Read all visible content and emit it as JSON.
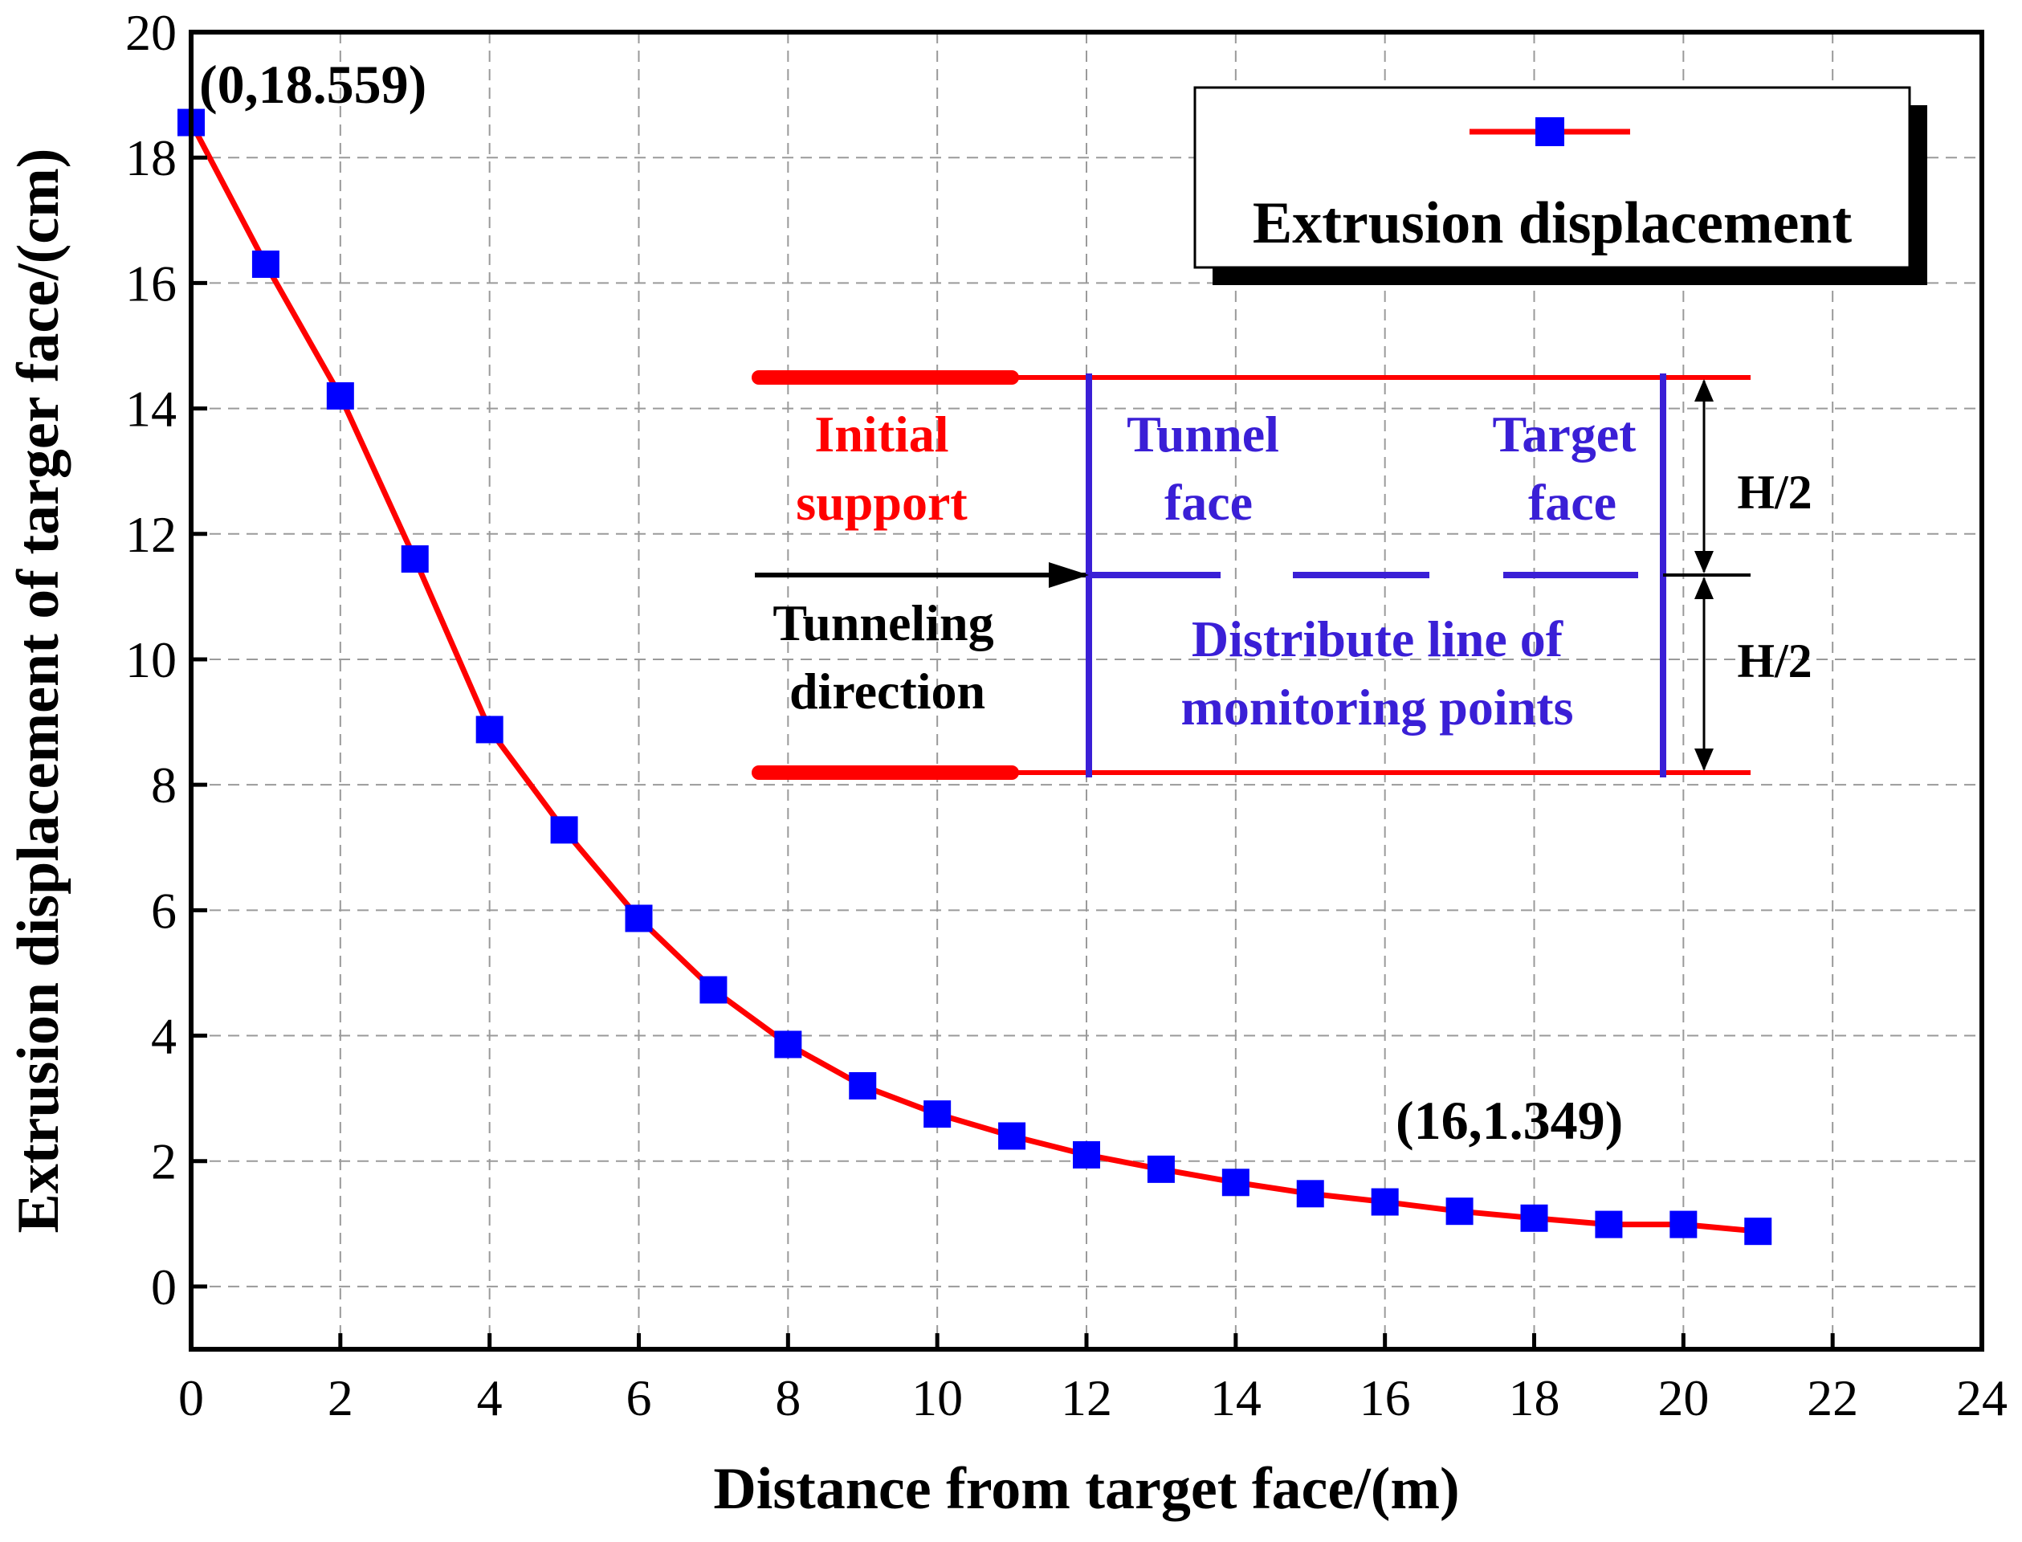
{
  "chart_data": {
    "type": "line",
    "title": "",
    "xlabel": "Distance from target face/(m)",
    "ylabel": "Extrusion displacement of targer face/(cm)",
    "xlim": [
      0,
      24
    ],
    "ylim": [
      -1,
      20
    ],
    "xticks": [
      0,
      2,
      4,
      6,
      8,
      10,
      12,
      14,
      16,
      18,
      20,
      22,
      24
    ],
    "yticks": [
      0,
      2,
      4,
      6,
      8,
      10,
      12,
      14,
      16,
      18,
      20
    ],
    "grid": true,
    "legend_position": "top-right",
    "series": [
      {
        "name": "Extrusion displacement",
        "line_color": "#ff0000",
        "marker_color": "#0000ff",
        "marker": "square",
        "x": [
          0,
          1,
          2,
          3,
          4,
          5,
          6,
          7,
          8,
          9,
          10,
          11,
          12,
          13,
          14,
          15,
          16,
          17,
          18,
          19,
          20,
          21
        ],
        "y": [
          18.559,
          16.3,
          14.2,
          11.6,
          8.88,
          7.28,
          5.87,
          4.73,
          3.86,
          3.2,
          2.75,
          2.4,
          2.1,
          1.87,
          1.66,
          1.48,
          1.349,
          1.2,
          1.09,
          0.99,
          0.99,
          0.88
        ]
      }
    ],
    "annotations": [
      {
        "text": "(0,18.559)",
        "x": 0,
        "y": 18.559
      },
      {
        "text": "(16,1.349)",
        "x": 16,
        "y": 1.349
      }
    ]
  },
  "inset": {
    "initial_support_line1": "Initial",
    "initial_support_line2": "support",
    "tunnel_face_line1": "Tunnel",
    "tunnel_face_line2": "face",
    "target_face_line1": "Target",
    "target_face_line2": "face",
    "tunneling_line1": "Tunneling",
    "tunneling_line2": "direction",
    "distribute_line1": "Distribute line of",
    "distribute_line2": "monitoring points",
    "h_upper": "H/2",
    "h_lower": "H/2"
  },
  "colors": {
    "red": "#ff0000",
    "blue": "#0000ff",
    "inset_blue": "#3a1fd6",
    "grid": "#9a9a9a"
  }
}
